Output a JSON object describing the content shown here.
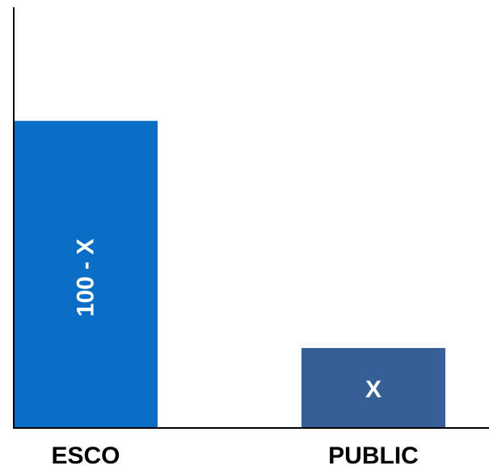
{
  "chart_data": {
    "type": "bar",
    "categories": [
      "ESCO",
      "PUBLIC"
    ],
    "values": [
      73,
      19
    ],
    "bar_labels": [
      "100 - X",
      "X"
    ],
    "colors": [
      "#0A6EC6",
      "#355F96"
    ],
    "ylim": [
      0,
      100
    ],
    "title": "",
    "xlabel": "",
    "ylabel": "",
    "grid": false
  }
}
